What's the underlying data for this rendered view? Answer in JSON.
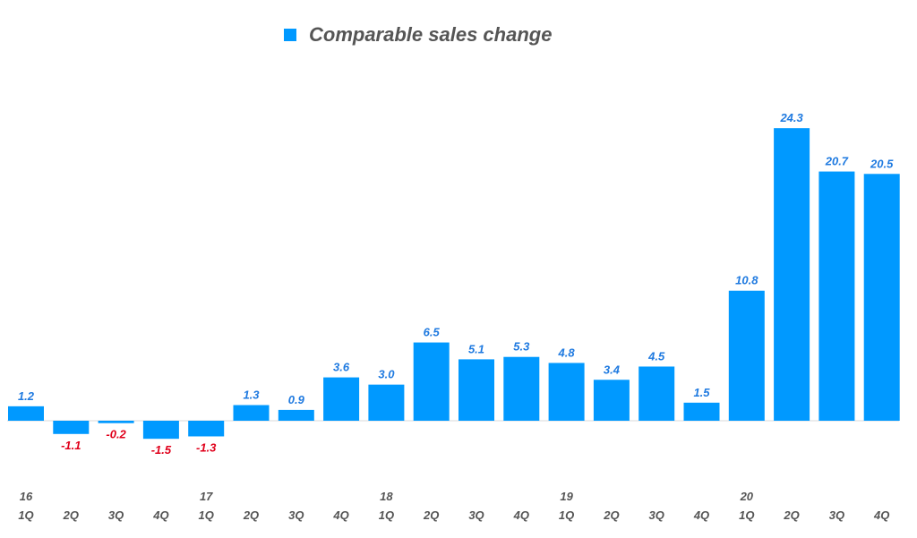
{
  "chart_data": {
    "type": "bar",
    "title": "",
    "xlabel": "",
    "ylabel": "",
    "legend": {
      "label": "Comparable sales change",
      "placement": "top-center"
    },
    "years": [
      "16",
      "",
      "",
      "",
      "17",
      "",
      "",
      "",
      "18",
      "",
      "",
      "",
      "19",
      "",
      "",
      "",
      "20",
      "",
      "",
      ""
    ],
    "categories": [
      "1Q",
      "2Q",
      "3Q",
      "4Q",
      "1Q",
      "2Q",
      "3Q",
      "4Q",
      "1Q",
      "2Q",
      "3Q",
      "4Q",
      "1Q",
      "2Q",
      "3Q",
      "4Q",
      "1Q",
      "2Q",
      "3Q",
      "4Q"
    ],
    "series": [
      {
        "name": "Comparable sales change",
        "values": [
          1.2,
          -1.1,
          -0.2,
          -1.5,
          -1.3,
          1.3,
          0.9,
          3.6,
          3.0,
          6.5,
          5.1,
          5.3,
          4.8,
          3.4,
          4.5,
          1.5,
          10.8,
          24.3,
          20.7,
          20.5
        ],
        "labels": [
          "1.2",
          "-1.1",
          "-0.2",
          "-1.5",
          "-1.3",
          "1.3",
          "0.9",
          "3.6",
          "3.0",
          "6.5",
          "5.1",
          "5.3",
          "4.8",
          "3.4",
          "4.5",
          "1.5",
          "10.8",
          "24.3",
          "20.7",
          "20.5"
        ]
      }
    ],
    "colors": {
      "bar": "#0099ff",
      "positive_label": "#1f7ae0",
      "negative_label": "#e0001b",
      "axis": "#d9d9d9"
    },
    "grid": false
  }
}
